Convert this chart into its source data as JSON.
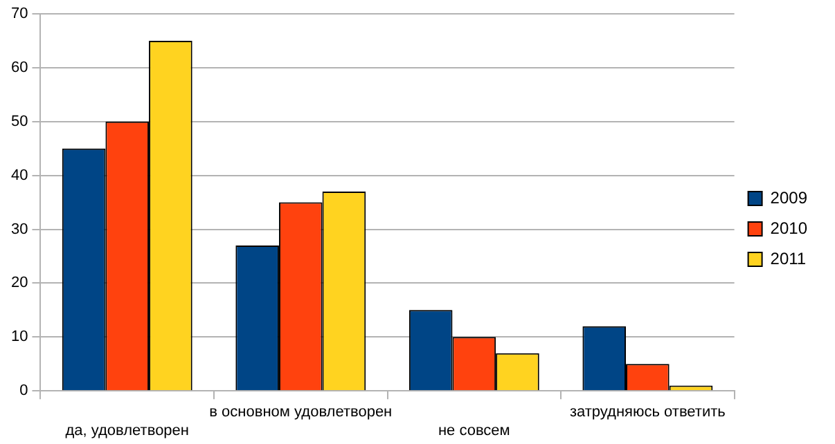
{
  "chart_data": {
    "type": "bar",
    "categories": [
      "да, удовлетворен",
      "в основном удовлетворен",
      "не совсем",
      "затрудняюсь ответить"
    ],
    "series": [
      {
        "name": "2009",
        "color": "#004586",
        "values": [
          45,
          27,
          15,
          12
        ]
      },
      {
        "name": "2010",
        "color": "#ff420e",
        "values": [
          50,
          35,
          10,
          5
        ]
      },
      {
        "name": "2011",
        "color": "#ffd320",
        "values": [
          65,
          37,
          7,
          1
        ]
      }
    ],
    "ylim": [
      0,
      70
    ],
    "yticks": [
      0,
      10,
      20,
      30,
      40,
      50,
      60,
      70
    ],
    "grid": "y",
    "legend": "right"
  }
}
